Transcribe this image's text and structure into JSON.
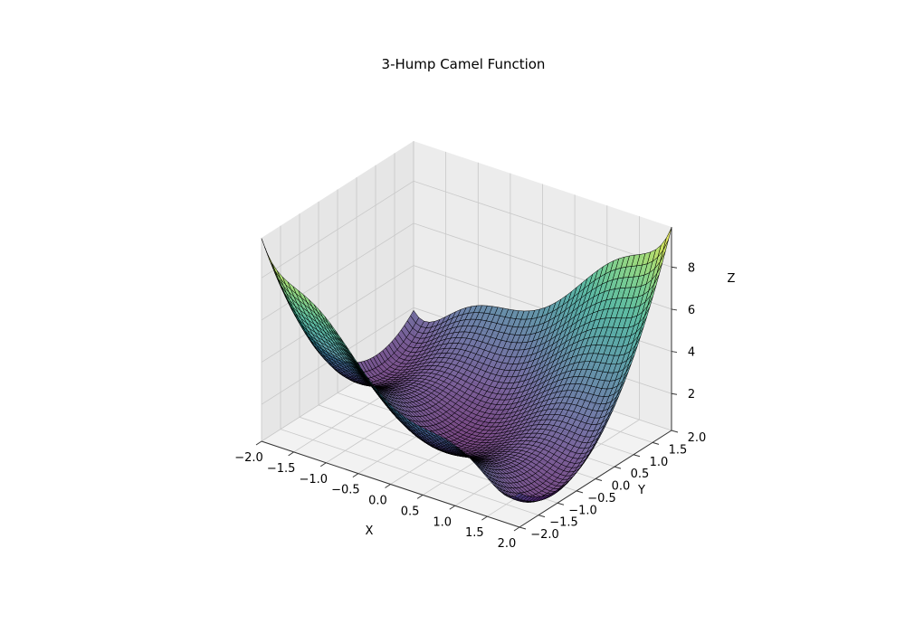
{
  "chart_data": {
    "type": "surface",
    "title": "3-Hump Camel Function",
    "function": "2*x^2 - 1.05*x^4 + x^6/6 + x*y + y^2",
    "xlabel": "X",
    "ylabel": "Y",
    "zlabel": "Z",
    "xlim": [
      -2,
      2
    ],
    "ylim": [
      -2,
      2
    ],
    "zlim": [
      0.25,
      9.9
    ],
    "grid_points": 50,
    "x_ticks": [
      "−2.0",
      "−1.5",
      "−1.0",
      "−0.5",
      "0.0",
      "0.5",
      "1.0",
      "1.5",
      "2.0"
    ],
    "y_ticks": [
      "−2.0",
      "−1.5",
      "−1.0",
      "−0.5",
      "0.0",
      "0.5",
      "1.0",
      "1.5",
      "2.0"
    ],
    "z_ticks": [
      "2",
      "4",
      "6",
      "8"
    ],
    "x_tick_values": [
      -2,
      -1.5,
      -1,
      -0.5,
      0,
      0.5,
      1,
      1.5,
      2
    ],
    "y_tick_values": [
      -2,
      -1.5,
      -1,
      -0.5,
      0,
      0.5,
      1,
      1.5,
      2
    ],
    "z_tick_values": [
      2,
      4,
      6,
      8
    ],
    "colormap": "viridis",
    "alpha": 0.7,
    "edge_color": "#000000",
    "grid": true,
    "pane_color": "#f2f2f2"
  }
}
